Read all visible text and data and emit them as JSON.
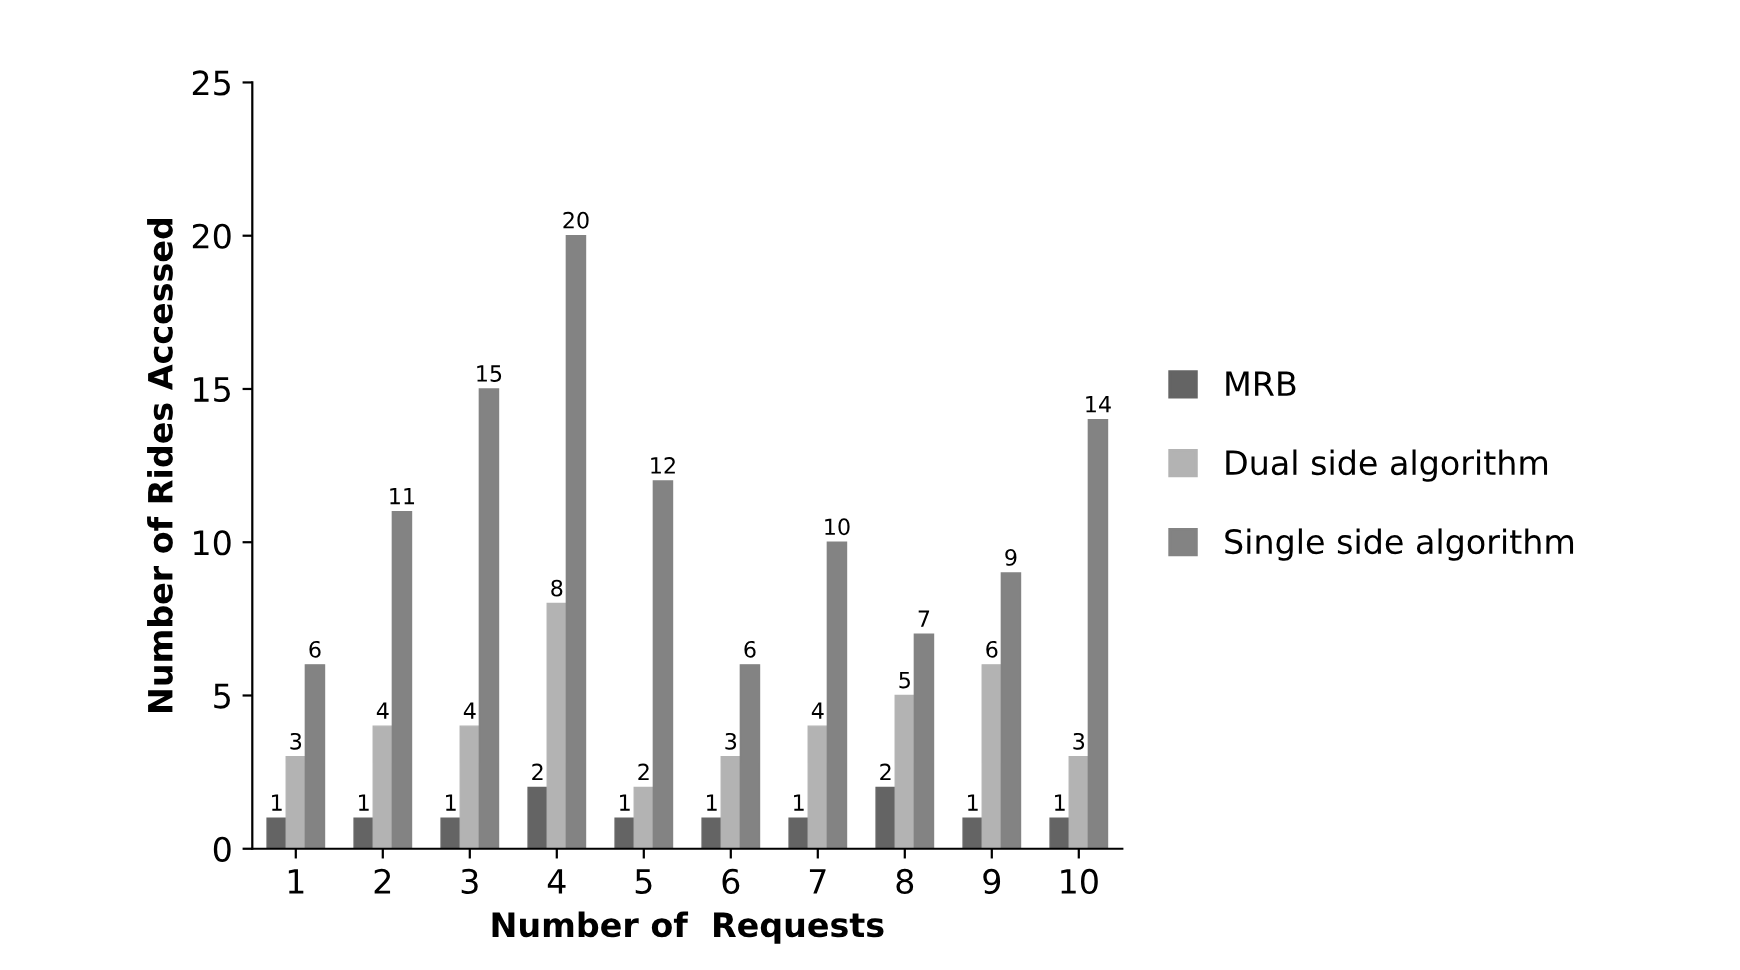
{
  "chart_data": {
    "type": "bar",
    "xlabel": "Number of  Requests",
    "ylabel": "Number of Rides Accessed",
    "categories": [
      "1",
      "2",
      "3",
      "4",
      "5",
      "6",
      "7",
      "8",
      "9",
      "10"
    ],
    "series": [
      {
        "name": "MRB",
        "color": "#646464",
        "values": [
          1,
          1,
          1,
          2,
          1,
          1,
          1,
          2,
          1,
          1
        ]
      },
      {
        "name": "Dual side algorithm",
        "color": "#b3b3b3",
        "values": [
          3,
          4,
          4,
          8,
          2,
          3,
          4,
          5,
          6,
          3
        ]
      },
      {
        "name": "Single side algorithm",
        "color": "#838383",
        "values": [
          6,
          11,
          15,
          20,
          12,
          6,
          10,
          7,
          9,
          14
        ]
      }
    ],
    "ylim": [
      0,
      25
    ],
    "yticks": [
      0,
      5,
      10,
      15,
      20,
      25
    ],
    "data_labels": true,
    "grid": false,
    "legend": "right"
  }
}
